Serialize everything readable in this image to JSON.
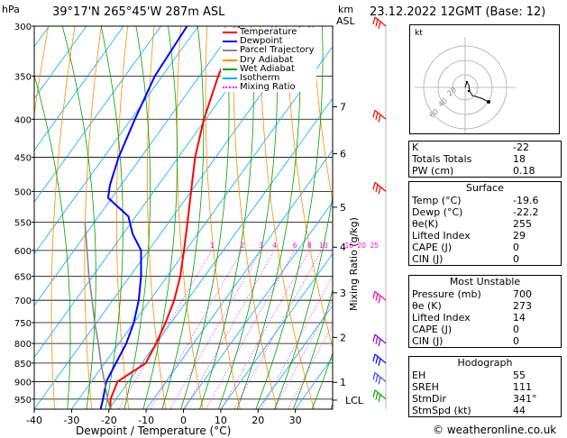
{
  "header": {
    "p_unit": "hPa",
    "location": "39°17'N  265°45'W  287m  ASL",
    "km_label": "km",
    "asl_label": "ASL",
    "datetime": "23.12.2022  12GMT  (Base: 12)"
  },
  "legend": [
    {
      "label": "Temperature",
      "color": "#ff0000",
      "style": "solid"
    },
    {
      "label": "Dewpoint",
      "color": "#0000ff",
      "style": "solid"
    },
    {
      "label": "Parcel Trajectory",
      "color": "#888888",
      "style": "solid"
    },
    {
      "label": "Dry Adiabat",
      "color": "#ff8c00",
      "style": "solid"
    },
    {
      "label": "Wet Adiabat",
      "color": "#00a000",
      "style": "solid"
    },
    {
      "label": "Isotherm",
      "color": "#00aaff",
      "style": "solid"
    },
    {
      "label": "Mixing Ratio",
      "color": "#ff00ff",
      "style": "dotted"
    }
  ],
  "chart_data": {
    "type": "line",
    "title": "39°17'N  265°45'W  287m  ASL",
    "xlabel": "Dewpoint / Temperature (°C)",
    "ylabel": "hPa",
    "y2label": "Mixing Ratio (g/kg)",
    "xlim": [
      -40,
      40
    ],
    "ylim": [
      980,
      300
    ],
    "y_scale": "log",
    "skew": true,
    "x_ticks": [
      -40,
      -30,
      -20,
      -10,
      0,
      10,
      20,
      30
    ],
    "pressure_levels": [
      300,
      350,
      400,
      450,
      500,
      550,
      600,
      650,
      700,
      750,
      800,
      850,
      900,
      950
    ],
    "km_ticks": [
      {
        "km": "1",
        "p": 902
      },
      {
        "km": "2",
        "p": 785
      },
      {
        "km": "3",
        "p": 684
      },
      {
        "km": "4",
        "p": 594
      },
      {
        "km": "5",
        "p": 525
      },
      {
        "km": "6",
        "p": 445
      },
      {
        "km": "7",
        "p": 385
      }
    ],
    "lcl": {
      "label": "LCL",
      "p": 953
    },
    "mixing_ratio_labels": [
      "1",
      "2",
      "3",
      "4",
      "6",
      "8",
      "10",
      "16",
      "20",
      "25"
    ],
    "series": [
      {
        "name": "Temperature",
        "color": "#ff0000",
        "points": [
          [
            980,
            -19.6
          ],
          [
            950,
            -21.5
          ],
          [
            900,
            -23.0
          ],
          [
            850,
            -19.0
          ],
          [
            800,
            -20.0
          ],
          [
            750,
            -21.5
          ],
          [
            700,
            -23.5
          ],
          [
            650,
            -26.5
          ],
          [
            600,
            -30.5
          ],
          [
            550,
            -35.0
          ],
          [
            500,
            -40.0
          ],
          [
            450,
            -45.5
          ],
          [
            400,
            -50.5
          ],
          [
            350,
            -55.0
          ],
          [
            300,
            -59.0
          ]
        ]
      },
      {
        "name": "Dewpoint",
        "color": "#0000ff",
        "points": [
          [
            980,
            -22.2
          ],
          [
            950,
            -23.5
          ],
          [
            900,
            -26.0
          ],
          [
            850,
            -27.0
          ],
          [
            800,
            -28.0
          ],
          [
            750,
            -30.0
          ],
          [
            700,
            -33.0
          ],
          [
            650,
            -37.0
          ],
          [
            600,
            -42.0
          ],
          [
            570,
            -47.5
          ],
          [
            540,
            -52.0
          ],
          [
            510,
            -61.0
          ],
          [
            490,
            -63.0
          ],
          [
            450,
            -66.0
          ],
          [
            400,
            -69.0
          ],
          [
            350,
            -72.0
          ],
          [
            300,
            -73.0
          ]
        ]
      },
      {
        "name": "Parcel Trajectory",
        "color": "#888888",
        "points": [
          [
            980,
            -19.6
          ],
          [
            953,
            -22.0
          ],
          [
            900,
            -26.5
          ],
          [
            850,
            -31.0
          ],
          [
            800,
            -35.5
          ],
          [
            750,
            -40.5
          ],
          [
            700,
            -45.5
          ],
          [
            650,
            -51.0
          ],
          [
            600,
            -56.5
          ],
          [
            550,
            -62.5
          ]
        ]
      }
    ],
    "wind_barbs": [
      {
        "p": 300,
        "color": "#ff0000"
      },
      {
        "p": 400,
        "color": "#ff0000"
      },
      {
        "p": 500,
        "color": "#ff0000"
      },
      {
        "p": 700,
        "color": "#ff00aa"
      },
      {
        "p": 800,
        "color": "#8800cc"
      },
      {
        "p": 850,
        "color": "#0000ff"
      },
      {
        "p": 900,
        "color": "#4444ff"
      },
      {
        "p": 950,
        "color": "#00aa00"
      }
    ]
  },
  "hodograph": {
    "unit_label": "kt",
    "ring_labels": [
      "20",
      "40",
      "60"
    ]
  },
  "indices": {
    "rows": [
      {
        "label": "K",
        "value": "-22"
      },
      {
        "label": "Totals Totals",
        "value": "18"
      },
      {
        "label": "PW (cm)",
        "value": "0.18"
      }
    ]
  },
  "surface": {
    "title": "Surface",
    "rows": [
      {
        "label": "Temp (°C)",
        "value": "-19.6"
      },
      {
        "label": "Dewp (°C)",
        "value": "-22.2"
      },
      {
        "label": "θe(K)",
        "value": "255"
      },
      {
        "label": "Lifted Index",
        "value": "29"
      },
      {
        "label": "CAPE (J)",
        "value": "0"
      },
      {
        "label": "CIN (J)",
        "value": "0"
      }
    ]
  },
  "most_unstable": {
    "title": "Most Unstable",
    "rows": [
      {
        "label": "Pressure (mb)",
        "value": "700"
      },
      {
        "label": "θe (K)",
        "value": "273"
      },
      {
        "label": "Lifted Index",
        "value": "14"
      },
      {
        "label": "CAPE (J)",
        "value": "0"
      },
      {
        "label": "CIN (J)",
        "value": "0"
      }
    ]
  },
  "hodo_table": {
    "title": "Hodograph",
    "rows": [
      {
        "label": "EH",
        "value": "55"
      },
      {
        "label": "SREH",
        "value": "111"
      },
      {
        "label": "StmDir",
        "value": "341°"
      },
      {
        "label": "StmSpd (kt)",
        "value": "44"
      }
    ]
  },
  "footer": {
    "copyright": "© weatheronline.co.uk"
  }
}
